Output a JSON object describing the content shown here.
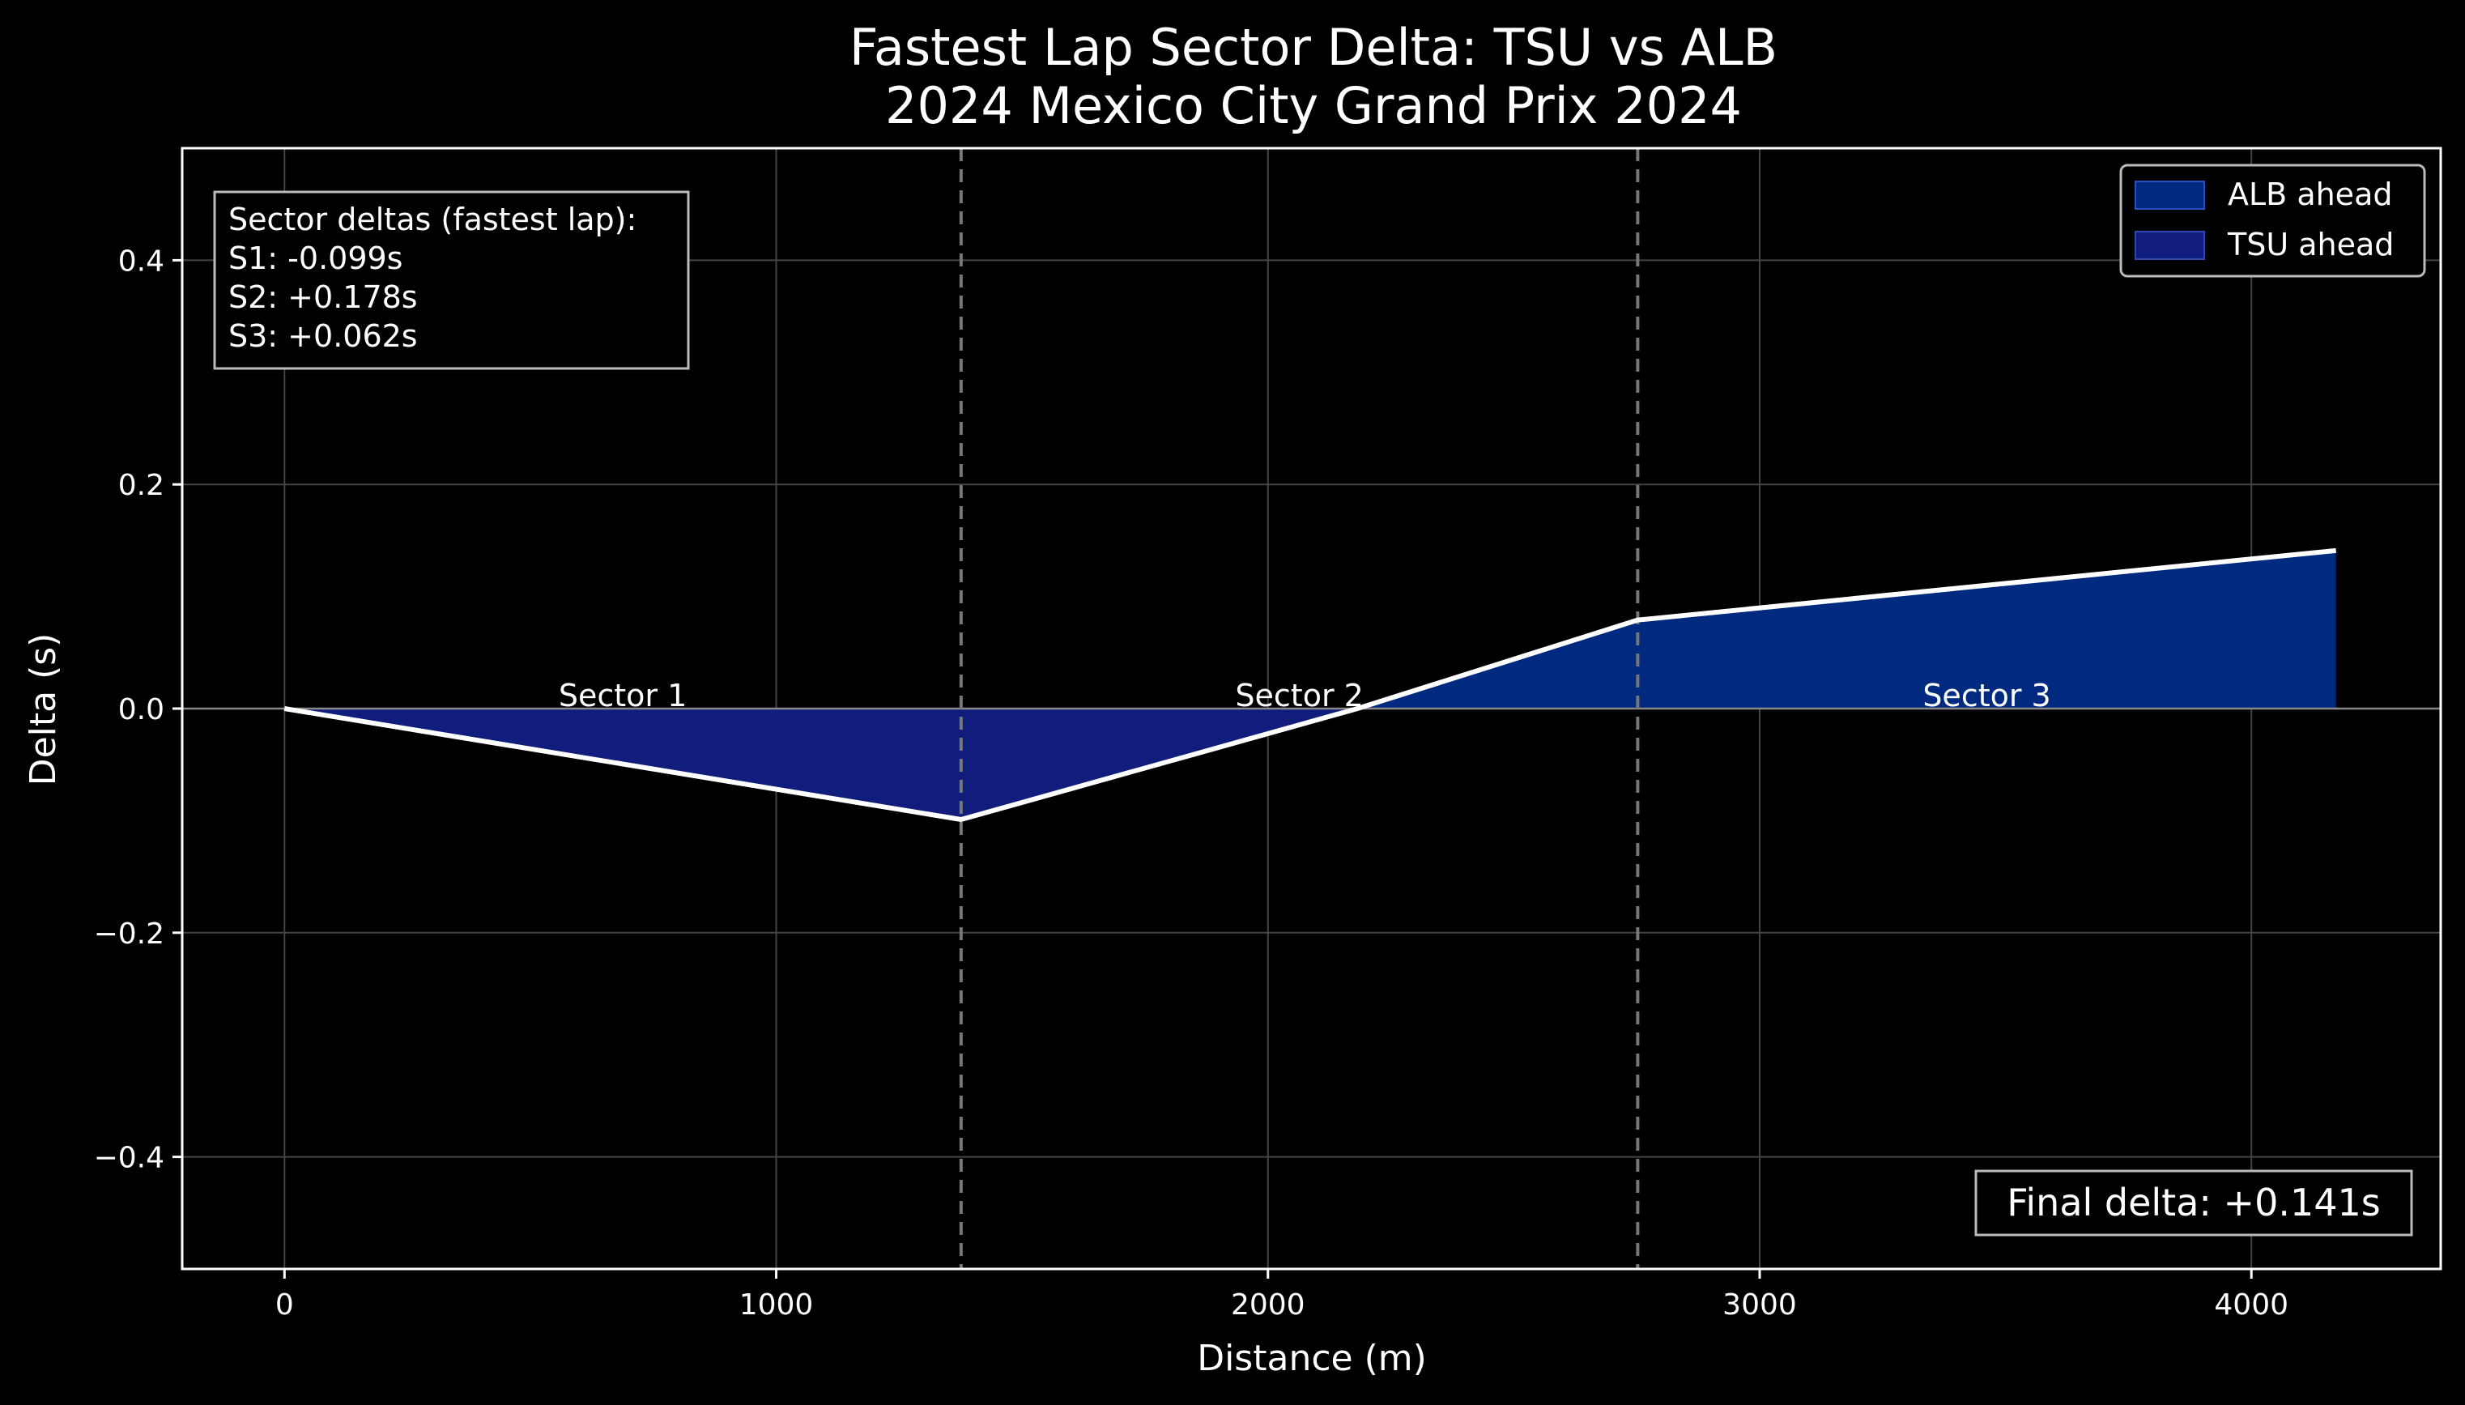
{
  "chart_data": {
    "type": "area",
    "title": "Fastest Lap Sector Delta: TSU vs ALB",
    "subtitle": "2024 Mexico City Grand Prix 2024",
    "xlabel": "Distance (m)",
    "ylabel": "Delta (s)",
    "xlim": [
      -208,
      4385
    ],
    "ylim": [
      -0.5,
      0.5
    ],
    "x_ticks": [
      0,
      1000,
      2000,
      3000,
      4000
    ],
    "x_tick_labels": [
      "0",
      "1000",
      "2000",
      "3000",
      "4000"
    ],
    "y_ticks": [
      0.4,
      0.2,
      0.0,
      -0.2,
      -0.4
    ],
    "y_tick_labels": [
      "0.4",
      "0.2",
      "0.0",
      "−0.2",
      "−0.4"
    ],
    "grid": true,
    "legend_position": "top-right",
    "series": [
      {
        "name": "Delta",
        "x": [
          0,
          1376,
          2182,
          2752,
          4172
        ],
        "y": [
          0.0,
          -0.099,
          0.0,
          0.079,
          0.141
        ]
      }
    ],
    "fills": [
      {
        "label": "ALB ahead",
        "condition": "delta > 0",
        "color": "#002a80"
      },
      {
        "label": "TSU ahead",
        "condition": "delta < 0",
        "color": "#101d7c"
      }
    ],
    "sector_boundaries": [
      1376,
      2752
    ],
    "sectors": [
      {
        "label": "Sector 1",
        "x": 688,
        "y": 0.0
      },
      {
        "label": "Sector 2",
        "x": 2064,
        "y": 0.0
      },
      {
        "label": "Sector 3",
        "x": 3462,
        "y": 0.0
      }
    ],
    "info_box": {
      "lines": [
        "Sector deltas (fastest lap):",
        "S1: -0.099s",
        "S2: +0.178s",
        "S3: +0.062s"
      ]
    },
    "final_delta": "Final delta: +0.141s",
    "colors": {
      "background": "#000000",
      "line": "#ffffff",
      "grid": "#444444",
      "sector_line": "#777777"
    }
  }
}
